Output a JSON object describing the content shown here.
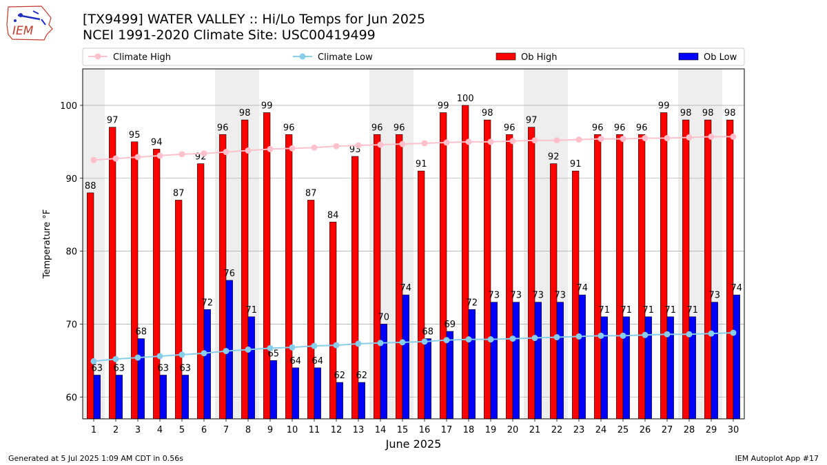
{
  "header": {
    "title_line1": "[TX9499] WATER VALLEY :: Hi/Lo Temps for Jun 2025",
    "title_line2": "NCEI 1991-2020 Climate Site: USC00419499",
    "logo_text": "IEM"
  },
  "footer": {
    "left": "Generated at 5 Jul 2025 1:09 AM CDT in 0.56s",
    "right": "IEM Autoplot App #17"
  },
  "colors": {
    "ob_high": "#ff0000",
    "ob_low": "#0000ff",
    "climate_high": "#ffc0cb",
    "climate_low": "#87ceeb",
    "weekend_shade": "#eeeeee",
    "grid": "#b0b0b0"
  },
  "chart_data": {
    "type": "bar",
    "xlabel": "June 2025",
    "ylabel": "Temperature °F",
    "ylim": [
      57,
      105
    ],
    "yticks": [
      60,
      70,
      80,
      90,
      100
    ],
    "grid": true,
    "legend_position": "top",
    "categories": [
      "1",
      "2",
      "3",
      "4",
      "5",
      "6",
      "7",
      "8",
      "9",
      "10",
      "11",
      "12",
      "13",
      "14",
      "15",
      "16",
      "17",
      "18",
      "19",
      "20",
      "21",
      "22",
      "23",
      "24",
      "25",
      "26",
      "27",
      "28",
      "29",
      "30"
    ],
    "shaded_days": [
      1,
      7,
      8,
      14,
      15,
      21,
      22,
      28,
      29
    ],
    "series": [
      {
        "name": "Climate High",
        "kind": "line",
        "values": [
          92.5,
          92.7,
          92.9,
          93.1,
          93.3,
          93.4,
          93.6,
          93.8,
          94.0,
          94.1,
          94.2,
          94.4,
          94.5,
          94.6,
          94.7,
          94.8,
          94.9,
          95.0,
          95.0,
          95.1,
          95.2,
          95.2,
          95.3,
          95.4,
          95.4,
          95.5,
          95.5,
          95.6,
          95.7,
          95.7
        ]
      },
      {
        "name": "Climate Low",
        "kind": "line",
        "values": [
          64.9,
          65.2,
          65.4,
          65.6,
          65.8,
          66.0,
          66.3,
          66.5,
          66.7,
          66.8,
          67.0,
          67.1,
          67.3,
          67.4,
          67.5,
          67.6,
          67.8,
          67.9,
          67.9,
          68.0,
          68.1,
          68.2,
          68.3,
          68.4,
          68.4,
          68.5,
          68.6,
          68.6,
          68.7,
          68.8
        ]
      },
      {
        "name": "Ob High",
        "kind": "bar",
        "values": [
          88,
          97,
          95,
          94,
          87,
          92,
          96,
          98,
          99,
          96,
          87,
          84,
          93,
          96,
          96,
          91,
          99,
          100,
          98,
          96,
          97,
          92,
          91,
          96,
          96,
          96,
          99,
          98,
          98,
          98
        ]
      },
      {
        "name": "Ob Low",
        "kind": "bar",
        "values": [
          63,
          63,
          68,
          63,
          63,
          72,
          76,
          71,
          65,
          64,
          64,
          62,
          62,
          70,
          74,
          68,
          69,
          72,
          73,
          73,
          73,
          73,
          74,
          71,
          71,
          71,
          71,
          71,
          73,
          74
        ]
      }
    ]
  }
}
